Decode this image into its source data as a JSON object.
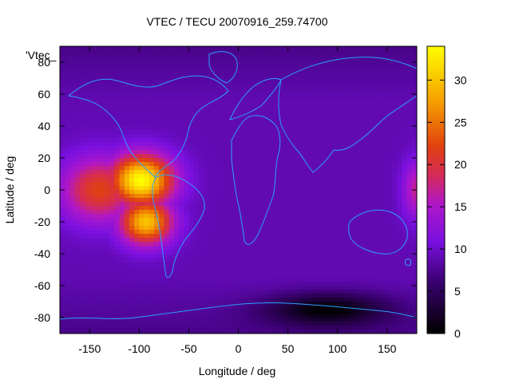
{
  "chart_data": {
    "type": "heatmap",
    "title": "VTEC / TECU 20070916_259.74700",
    "xlabel": "Longitude / deg",
    "ylabel": "Latitude / deg",
    "xlim": [
      -180,
      180
    ],
    "ylim": [
      -90,
      90
    ],
    "x_ticks": [
      -150,
      -100,
      -50,
      0,
      50,
      100,
      150
    ],
    "y_ticks": [
      -80,
      -60,
      -40,
      -20,
      0,
      20,
      40,
      60,
      80
    ],
    "legend": {
      "label": "'Vtec_",
      "placement": "top-left"
    },
    "colorbar": {
      "min": 0,
      "max": 34,
      "ticks": [
        0,
        5,
        10,
        15,
        20,
        25,
        30
      ],
      "palette": "black-purple-red-yellow"
    },
    "grid": false,
    "hotspots": [
      {
        "name": "south-america-peak",
        "lon": -98,
        "lat": 6,
        "vtec": 34
      },
      {
        "name": "south-america-secondary",
        "lon": -93,
        "lat": -20,
        "vtec": 30
      },
      {
        "name": "pacific-plume",
        "lon": -140,
        "lat": 0,
        "vtec": 22
      },
      {
        "name": "dateline-east-edge",
        "lon": 180,
        "lat": 0,
        "vtec": 17
      }
    ],
    "background_vtec": 9,
    "low_region": {
      "name": "antarctic-trough",
      "lon": 90,
      "lat": -75,
      "vtec": 1
    }
  }
}
